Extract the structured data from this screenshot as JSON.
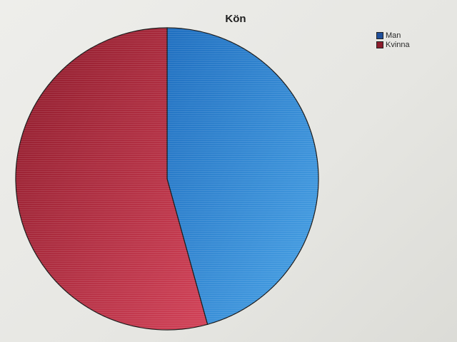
{
  "chart_data": {
    "type": "pie",
    "title": "Kön",
    "categories": [
      "Man",
      "Kvinna"
    ],
    "values": [
      45.7,
      54.3
    ],
    "colors": [
      "#2f86d4",
      "#c8364a"
    ],
    "legend_colors": [
      "#1f4f9a",
      "#8b1c2c"
    ],
    "legend_placement": "top-right"
  }
}
